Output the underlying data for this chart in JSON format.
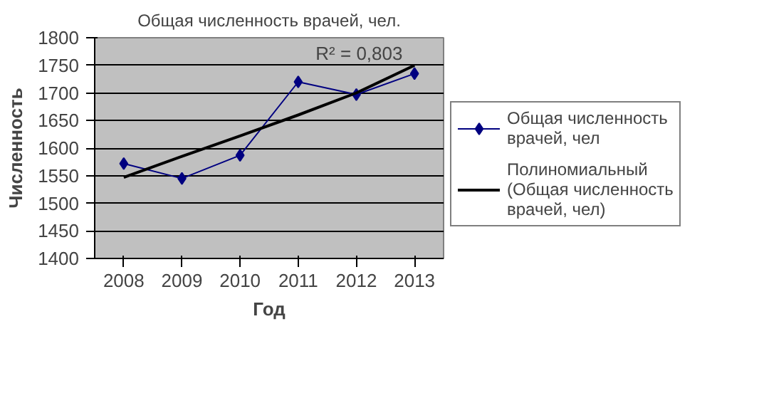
{
  "chart_data": {
    "type": "line",
    "title": "Общая численность врачей, чел.",
    "xlabel": "Год",
    "ylabel": "Численность",
    "categories": [
      "2008",
      "2009",
      "2010",
      "2011",
      "2012",
      "2013"
    ],
    "series": [
      {
        "name": "Общая численность врачей, чел",
        "color": "#000080",
        "values": [
          1572,
          1545,
          1587,
          1720,
          1697,
          1735
        ],
        "marker": "diamond"
      },
      {
        "name": "Полиномиальный (Общая численность врачей, чел)",
        "color": "#000000",
        "values": [
          1547,
          1585,
          1622,
          1660,
          1700,
          1750
        ],
        "marker": "none"
      }
    ],
    "ylim": [
      1400,
      1800
    ],
    "yticks": [
      1400,
      1450,
      1500,
      1550,
      1600,
      1650,
      1700,
      1750,
      1800
    ],
    "grid": "y",
    "legend": "right",
    "annotations": [
      "R² = 0,803"
    ]
  }
}
